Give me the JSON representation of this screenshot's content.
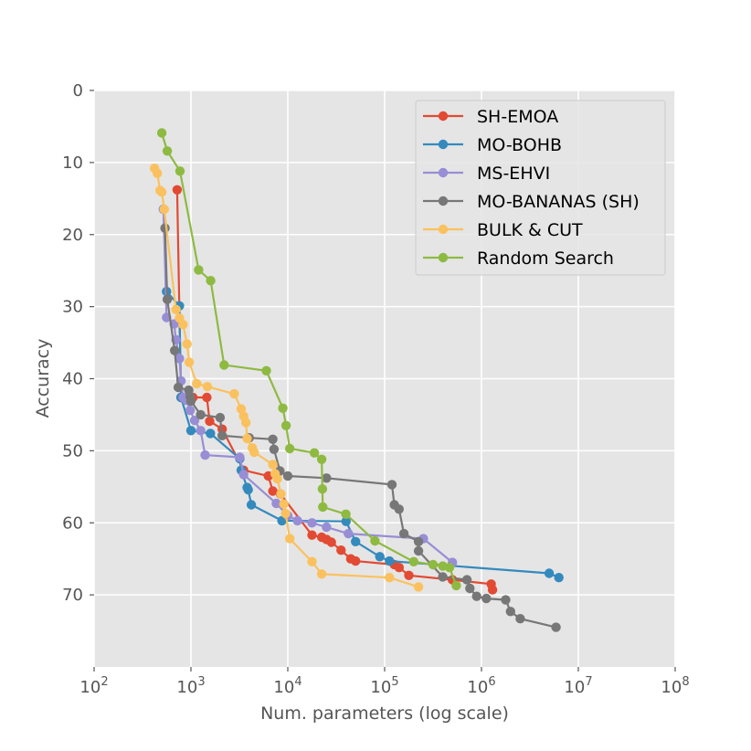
{
  "chart_data": {
    "type": "line",
    "xlabel": "Num. parameters (log scale)",
    "ylabel": "Accuracy",
    "xscale": "log",
    "xlim": [
      100,
      100000000
    ],
    "ylim": [
      80,
      0
    ],
    "y_inverted": true,
    "x_ticks": [
      100,
      1000,
      10000,
      100000,
      1000000,
      10000000,
      100000000
    ],
    "x_tick_labels": [
      {
        "base": "10",
        "exp": "2"
      },
      {
        "base": "10",
        "exp": "3"
      },
      {
        "base": "10",
        "exp": "4"
      },
      {
        "base": "10",
        "exp": "5"
      },
      {
        "base": "10",
        "exp": "6"
      },
      {
        "base": "10",
        "exp": "7"
      },
      {
        "base": "10",
        "exp": "8"
      }
    ],
    "y_ticks": [
      0,
      10,
      20,
      30,
      40,
      50,
      60,
      70
    ],
    "y_tick_labels": [
      "0",
      "10",
      "20",
      "30",
      "40",
      "50",
      "60",
      "70"
    ],
    "grid": true,
    "legend_position": "top-right",
    "background": "#e5e5e5",
    "series": [
      {
        "name": "SH-EMOA",
        "color": "#e24a33",
        "points": [
          [
            720,
            13.8
          ],
          [
            790,
            42.6
          ],
          [
            1050,
            42.6
          ],
          [
            1460,
            42.6
          ],
          [
            1560,
            45.9
          ],
          [
            2100,
            47.0
          ],
          [
            3500,
            52.7
          ],
          [
            6300,
            53.5
          ],
          [
            7000,
            55.6
          ],
          [
            8400,
            56.0
          ],
          [
            17800,
            61.7
          ],
          [
            22400,
            62.0
          ],
          [
            25100,
            62.3
          ],
          [
            28200,
            62.7
          ],
          [
            35500,
            63.8
          ],
          [
            44700,
            65.0
          ],
          [
            50100,
            65.3
          ],
          [
            125900,
            65.8
          ],
          [
            141300,
            66.2
          ],
          [
            177800,
            67.3
          ],
          [
            501200,
            67.9
          ],
          [
            1259000,
            68.5
          ],
          [
            1300000,
            69.3
          ]
        ]
      },
      {
        "name": "MO-BOHB",
        "color": "#348abd",
        "points": [
          [
            520,
            16.5
          ],
          [
            560,
            27.9
          ],
          [
            760,
            29.9
          ],
          [
            790,
            42.6
          ],
          [
            1000,
            47.2
          ],
          [
            1590,
            47.6
          ],
          [
            3200,
            51.1
          ],
          [
            3300,
            52.7
          ],
          [
            3800,
            55.1
          ],
          [
            3900,
            55.4
          ],
          [
            4200,
            57.5
          ],
          [
            8700,
            59.7
          ],
          [
            40000,
            59.8
          ],
          [
            50100,
            62.6
          ],
          [
            89100,
            64.7
          ],
          [
            112200,
            65.3
          ],
          [
            5000000,
            67.0
          ],
          [
            6300000,
            67.6
          ]
        ]
      },
      {
        "name": "MS-EHVI",
        "color": "#988ed5",
        "points": [
          [
            520,
            16.5
          ],
          [
            560,
            31.5
          ],
          [
            670,
            32.4
          ],
          [
            700,
            34.6
          ],
          [
            760,
            37.2
          ],
          [
            790,
            40.3
          ],
          [
            830,
            42.6
          ],
          [
            900,
            43.0
          ],
          [
            980,
            44.4
          ],
          [
            1090,
            45.8
          ],
          [
            1260,
            47.2
          ],
          [
            1400,
            50.6
          ],
          [
            3200,
            50.9
          ],
          [
            3500,
            53.3
          ],
          [
            7600,
            57.3
          ],
          [
            10000,
            59.0
          ],
          [
            12600,
            59.7
          ],
          [
            17800,
            60.0
          ],
          [
            25100,
            60.6
          ],
          [
            42200,
            61.5
          ],
          [
            251200,
            62.2
          ],
          [
            501200,
            65.5
          ]
        ]
      },
      {
        "name": "MO-BANANAS (SH)",
        "color": "#777777",
        "points": [
          [
            540,
            19.1
          ],
          [
            570,
            29.0
          ],
          [
            680,
            36.1
          ],
          [
            740,
            41.2
          ],
          [
            950,
            41.6
          ],
          [
            980,
            42.5
          ],
          [
            1000,
            43.1
          ],
          [
            1260,
            45.0
          ],
          [
            2000,
            45.4
          ],
          [
            2100,
            47.9
          ],
          [
            4000,
            48.2
          ],
          [
            7000,
            48.4
          ],
          [
            7200,
            49.8
          ],
          [
            8300,
            52.8
          ],
          [
            10000,
            53.5
          ],
          [
            25100,
            53.8
          ],
          [
            119000,
            54.7
          ],
          [
            126000,
            57.5
          ],
          [
            141000,
            58.1
          ],
          [
            158000,
            61.5
          ],
          [
            223900,
            62.6
          ],
          [
            224000,
            63.9
          ],
          [
            398100,
            67.5
          ],
          [
            708000,
            67.9
          ],
          [
            758600,
            69.1
          ],
          [
            891300,
            70.2
          ],
          [
            1122000,
            70.5
          ],
          [
            1778000,
            70.7
          ],
          [
            1995000,
            72.3
          ],
          [
            2512000,
            73.3
          ],
          [
            5888000,
            74.5
          ]
        ]
      },
      {
        "name": "BULK & CUT",
        "color": "#fbc15e",
        "points": [
          [
            420,
            10.8
          ],
          [
            450,
            11.5
          ],
          [
            480,
            13.9
          ],
          [
            500,
            14.1
          ],
          [
            530,
            16.5
          ],
          [
            700,
            30.4
          ],
          [
            760,
            31.6
          ],
          [
            830,
            32.5
          ],
          [
            910,
            35.2
          ],
          [
            960,
            37.7
          ],
          [
            1150,
            40.7
          ],
          [
            1480,
            41.1
          ],
          [
            2800,
            42.1
          ],
          [
            3300,
            44.2
          ],
          [
            3500,
            45.2
          ],
          [
            3700,
            46.1
          ],
          [
            3800,
            48.3
          ],
          [
            4300,
            49.6
          ],
          [
            4500,
            50.2
          ],
          [
            7000,
            51.9
          ],
          [
            7400,
            53.2
          ],
          [
            7800,
            53.9
          ],
          [
            8500,
            56.0
          ],
          [
            9100,
            57.4
          ],
          [
            9500,
            58.7
          ],
          [
            10500,
            62.2
          ],
          [
            17800,
            65.4
          ],
          [
            22400,
            67.1
          ],
          [
            112200,
            67.6
          ],
          [
            223900,
            68.9
          ]
        ]
      },
      {
        "name": "Random Search",
        "color": "#8eba42",
        "points": [
          [
            500,
            5.9
          ],
          [
            570,
            8.4
          ],
          [
            770,
            11.2
          ],
          [
            1200,
            24.9
          ],
          [
            1600,
            26.4
          ],
          [
            2200,
            38.1
          ],
          [
            6000,
            38.9
          ],
          [
            8900,
            44.1
          ],
          [
            9600,
            46.5
          ],
          [
            10500,
            49.7
          ],
          [
            18800,
            50.3
          ],
          [
            22400,
            51.2
          ],
          [
            22800,
            55.3
          ],
          [
            23000,
            57.8
          ],
          [
            39800,
            58.8
          ],
          [
            79400,
            62.5
          ],
          [
            199500,
            65.4
          ],
          [
            316200,
            65.8
          ],
          [
            398100,
            66.0
          ],
          [
            467700,
            66.2
          ],
          [
            549500,
            68.7
          ]
        ]
      }
    ]
  }
}
